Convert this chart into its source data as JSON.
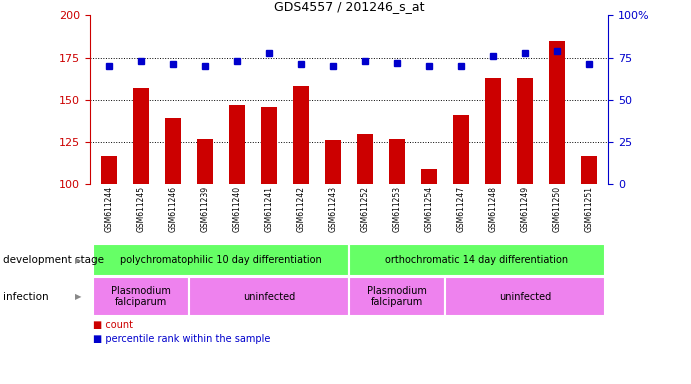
{
  "title": "GDS4557 / 201246_s_at",
  "samples": [
    "GSM611244",
    "GSM611245",
    "GSM611246",
    "GSM611239",
    "GSM611240",
    "GSM611241",
    "GSM611242",
    "GSM611243",
    "GSM611252",
    "GSM611253",
    "GSM611254",
    "GSM611247",
    "GSM611248",
    "GSM611249",
    "GSM611250",
    "GSM611251"
  ],
  "counts": [
    117,
    157,
    139,
    127,
    147,
    146,
    158,
    126,
    130,
    127,
    109,
    141,
    163,
    163,
    185,
    117
  ],
  "percentiles": [
    70,
    73,
    71,
    70,
    73,
    78,
    71,
    70,
    73,
    72,
    70,
    70,
    76,
    78,
    79,
    71
  ],
  "ylim_left": [
    100,
    200
  ],
  "ylim_right": [
    0,
    100
  ],
  "yticks_left": [
    100,
    125,
    150,
    175,
    200
  ],
  "yticks_right": [
    0,
    25,
    50,
    75,
    100
  ],
  "bar_color": "#cc0000",
  "dot_color": "#0000cc",
  "tick_area_color": "#d3d3d3",
  "dev_stage_color": "#66ff66",
  "dev_stage_groups": [
    {
      "label": "polychromatophilic 10 day differentiation",
      "start": 0,
      "end": 8
    },
    {
      "label": "orthochromatic 14 day differentiation",
      "start": 8,
      "end": 16
    }
  ],
  "infection_groups": [
    {
      "label": "Plasmodium\nfalciparum",
      "start": 0,
      "end": 3,
      "color": "#ee82ee"
    },
    {
      "label": "uninfected",
      "start": 3,
      "end": 8,
      "color": "#ee82ee"
    },
    {
      "label": "Plasmodium\nfalciparum",
      "start": 8,
      "end": 11,
      "color": "#ee82ee"
    },
    {
      "label": "uninfected",
      "start": 11,
      "end": 16,
      "color": "#ee82ee"
    }
  ],
  "legend_count_label": "count",
  "legend_pct_label": "percentile rank within the sample",
  "left_ylabel_color": "#cc0000",
  "right_ylabel_color": "#0000cc",
  "figsize": [
    6.91,
    3.84
  ],
  "dpi": 100
}
